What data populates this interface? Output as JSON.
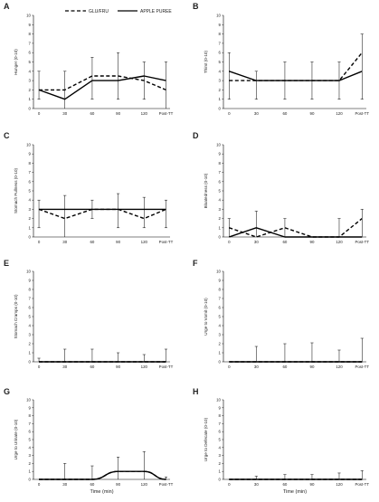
{
  "legend": [
    {
      "name": "GLU/FRU",
      "style": "dashed"
    },
    {
      "name": "APPLE PUREE",
      "style": "solid"
    }
  ],
  "xlabel": "Time (min)",
  "chart_data": [
    {
      "panel": "A",
      "type": "line",
      "ylabel": "Hunger (0-10)",
      "categories": [
        "0",
        "30",
        "60",
        "90",
        "120",
        "Post-TT"
      ],
      "ylim": [
        0,
        10
      ],
      "yticks": [
        0,
        1,
        2,
        3,
        4,
        5,
        6,
        7,
        8,
        9,
        10
      ],
      "xlabel": "",
      "series": [
        {
          "name": "GLU/FRU",
          "values": [
            2,
            2,
            3.5,
            3.5,
            3,
            2
          ]
        },
        {
          "name": "APPLE PUREE",
          "values": [
            2,
            1,
            3,
            3,
            3.5,
            3
          ]
        }
      ],
      "error_upper": [
        4,
        4,
        5.5,
        6,
        5,
        5
      ],
      "error_lower": [
        1,
        0,
        1,
        1,
        1,
        0
      ]
    },
    {
      "panel": "B",
      "type": "line",
      "ylabel": "Thirst (0-10)",
      "categories": [
        "0",
        "30",
        "60",
        "90",
        "120",
        "Post-TT"
      ],
      "ylim": [
        0,
        10
      ],
      "yticks": [
        0,
        1,
        2,
        3,
        4,
        5,
        6,
        7,
        8,
        9,
        10
      ],
      "xlabel": "",
      "series": [
        {
          "name": "GLU/FRU",
          "values": [
            3,
            3,
            3,
            3,
            3,
            6
          ]
        },
        {
          "name": "APPLE PUREE",
          "values": [
            4,
            3,
            3,
            3,
            3,
            4
          ]
        }
      ],
      "error_upper": [
        6,
        4,
        5,
        5,
        5,
        8
      ],
      "error_lower": [
        1,
        1,
        1,
        1,
        1,
        1
      ]
    },
    {
      "panel": "C",
      "type": "line",
      "ylabel": "Stomach Fullness (0-10)",
      "categories": [
        "0",
        "30",
        "60",
        "90",
        "120",
        "Post-TT"
      ],
      "ylim": [
        0,
        10
      ],
      "yticks": [
        0,
        1,
        2,
        3,
        4,
        5,
        6,
        7,
        8,
        9,
        10
      ],
      "xlabel": "",
      "series": [
        {
          "name": "GLU/FRU",
          "values": [
            3,
            2,
            3,
            3,
            2,
            3
          ]
        },
        {
          "name": "APPLE PUREE",
          "values": [
            3,
            3,
            3,
            3,
            3,
            3
          ]
        }
      ],
      "error_upper": [
        4,
        4.5,
        4,
        4.7,
        4.3,
        4
      ],
      "error_lower": [
        1,
        0,
        2,
        1,
        1,
        1
      ]
    },
    {
      "panel": "D",
      "type": "line",
      "ylabel": "Bloatedness (0-10)",
      "categories": [
        "0",
        "30",
        "60",
        "90",
        "120",
        "Post-TT"
      ],
      "ylim": [
        0,
        10
      ],
      "yticks": [
        0,
        1,
        2,
        3,
        4,
        5,
        6,
        7,
        8,
        9,
        10
      ],
      "xlabel": "",
      "series": [
        {
          "name": "GLU/FRU",
          "values": [
            1,
            0,
            1,
            0,
            0,
            2
          ]
        },
        {
          "name": "APPLE PUREE",
          "values": [
            0,
            1,
            0,
            0,
            0,
            0
          ]
        }
      ],
      "error_upper": [
        2,
        2.8,
        2,
        0,
        2,
        3
      ],
      "error_lower": [
        0,
        0,
        0,
        0,
        0,
        0
      ]
    },
    {
      "panel": "E",
      "type": "line",
      "ylabel": "Stomach Cramps (0-10)",
      "categories": [
        "0",
        "30",
        "60",
        "90",
        "120",
        "Post-TT"
      ],
      "ylim": [
        0,
        10
      ],
      "yticks": [
        0,
        1,
        2,
        3,
        4,
        5,
        6,
        7,
        8,
        9,
        10
      ],
      "xlabel": "",
      "series": [
        {
          "name": "GLU/FRU",
          "values": [
            0,
            0,
            0,
            0,
            0,
            0
          ]
        },
        {
          "name": "APPLE PUREE",
          "values": [
            0,
            0,
            0,
            0,
            0,
            0
          ]
        }
      ],
      "error_upper": [
        0.4,
        1.4,
        1.4,
        1,
        0.8,
        1.4
      ],
      "error_lower": [
        0,
        0,
        0,
        0,
        0,
        0
      ]
    },
    {
      "panel": "F",
      "type": "line",
      "ylabel": "Urge to Vomit (0-10)",
      "categories": [
        "0",
        "30",
        "60",
        "90",
        "120",
        "Post-TT"
      ],
      "ylim": [
        0,
        10
      ],
      "yticks": [
        0,
        1,
        2,
        3,
        4,
        5,
        6,
        7,
        8,
        9,
        10
      ],
      "xlabel": "",
      "series": [
        {
          "name": "GLU/FRU",
          "values": [
            0,
            0,
            0,
            0,
            0,
            0
          ]
        },
        {
          "name": "APPLE PUREE",
          "values": [
            0,
            0,
            0,
            0,
            0,
            0
          ]
        }
      ],
      "error_upper": [
        0,
        1.7,
        2,
        2.1,
        1.3,
        2.6
      ],
      "error_lower": [
        0,
        0,
        0,
        0,
        0,
        0
      ]
    },
    {
      "panel": "G",
      "type": "line",
      "ylabel": "Urge to Urinate (0-10)",
      "categories": [
        "0",
        "30",
        "60",
        "90",
        "120",
        "Post-TT"
      ],
      "ylim": [
        0,
        10
      ],
      "yticks": [
        0,
        1,
        2,
        3,
        4,
        5,
        6,
        7,
        8,
        9,
        10
      ],
      "xlabel": "Time (min)",
      "series": [
        {
          "name": "GLU/FRU",
          "values": [
            0,
            0,
            0,
            1,
            1,
            0
          ]
        },
        {
          "name": "APPLE PUREE",
          "values": [
            0,
            0,
            0,
            1,
            1,
            0
          ]
        }
      ],
      "error_upper": [
        0,
        2,
        1.7,
        2.8,
        3.5,
        0.3
      ],
      "error_lower": [
        0,
        0,
        0,
        0,
        0,
        0
      ]
    },
    {
      "panel": "H",
      "type": "line",
      "ylabel": "Urge to Defecate (0-10)",
      "categories": [
        "0",
        "30",
        "60",
        "90",
        "120",
        "Post-TT"
      ],
      "ylim": [
        0,
        10
      ],
      "yticks": [
        0,
        1,
        2,
        3,
        4,
        5,
        6,
        7,
        8,
        9,
        10
      ],
      "xlabel": "Time (min)",
      "series": [
        {
          "name": "GLU/FRU",
          "values": [
            0,
            0,
            0,
            0,
            0,
            0
          ]
        },
        {
          "name": "APPLE PUREE",
          "values": [
            0,
            0,
            0,
            0,
            0,
            0
          ]
        }
      ],
      "error_upper": [
        0,
        0.4,
        0.6,
        0.6,
        0.8,
        1.1
      ],
      "error_lower": [
        0,
        0,
        0,
        0,
        0,
        0
      ]
    }
  ]
}
